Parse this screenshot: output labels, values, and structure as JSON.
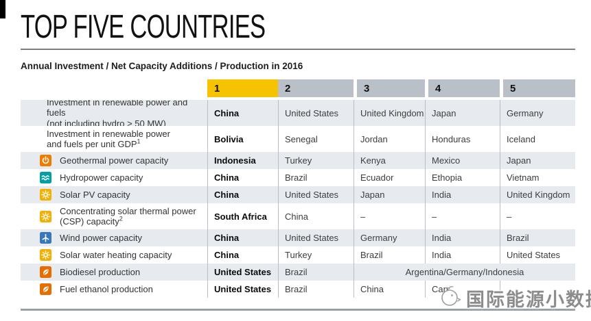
{
  "page": {
    "title": "TOP FIVE COUNTRIES",
    "subtitle": "Annual Investment / Net Capacity Additions / Production in 2016"
  },
  "colors": {
    "rank1_highlight": "#F5C300",
    "rank_header_gray": "#B9C0C8",
    "row_stripe": "#E7EBF0",
    "icons": {
      "geothermal-icon": "#ED7C00",
      "hydropower-icon": "#00A0A5",
      "solar-icon": "#F4B000",
      "wind-icon": "#3679BB",
      "biofuel-icon": "#E86D00"
    }
  },
  "table": {
    "rank_headers": [
      "1",
      "2",
      "3",
      "4",
      "5"
    ],
    "rows": [
      {
        "icon": null,
        "sup": null,
        "lines": [
          "Investment in renewable power and fuels",
          "(not including hydro > 50 MW)"
        ],
        "cells": [
          "China",
          "United States",
          "United Kingdom",
          "Japan",
          "Germany"
        ]
      },
      {
        "icon": null,
        "sup": "1",
        "lines": [
          "Investment in renewable power",
          "and fuels per unit GDP"
        ],
        "cells": [
          "Bolivia",
          "Senegal",
          "Jordan",
          "Honduras",
          "Iceland"
        ]
      },
      {
        "icon": "geothermal-icon",
        "sup": null,
        "lines": [
          "Geothermal power capacity"
        ],
        "cells": [
          "Indonesia",
          "Turkey",
          "Kenya",
          "Mexico",
          "Japan"
        ]
      },
      {
        "icon": "hydropower-icon",
        "sup": null,
        "lines": [
          "Hydropower capacity"
        ],
        "cells": [
          "China",
          "Brazil",
          "Ecuador",
          "Ethopia",
          "Vietnam"
        ]
      },
      {
        "icon": "solar-icon",
        "sup": null,
        "lines": [
          "Solar PV capacity"
        ],
        "cells": [
          "China",
          "United States",
          "Japan",
          "India",
          "United Kingdom"
        ]
      },
      {
        "icon": "solar-icon",
        "sup": "2",
        "lines": [
          "Concentrating solar thermal power",
          "(CSP) capacity"
        ],
        "cells": [
          "South Africa",
          "China",
          "–",
          "–",
          "–"
        ]
      },
      {
        "icon": "wind-icon",
        "sup": null,
        "lines": [
          "Wind power capacity"
        ],
        "cells": [
          "China",
          "United States",
          "Germany",
          "India",
          "Brazil"
        ]
      },
      {
        "icon": "solar-icon",
        "sup": null,
        "lines": [
          "Solar water heating capacity"
        ],
        "cells": [
          "China",
          "Turkey",
          "Brazil",
          "India",
          "United States"
        ]
      },
      {
        "icon": "biofuel-icon",
        "sup": null,
        "lines": [
          "Biodiesel production"
        ],
        "cells": [
          "United States",
          "Brazil"
        ],
        "merged": "Argentina/Germany/Indonesia"
      },
      {
        "icon": "biofuel-icon",
        "sup": null,
        "lines": [
          "Fuel ethanol production"
        ],
        "cells": [
          "United States",
          "Brazil",
          "China",
          "Can",
          ""
        ]
      }
    ]
  },
  "watermark": {
    "logo": "bird-logo-icon",
    "text": "国际能源小数据"
  }
}
